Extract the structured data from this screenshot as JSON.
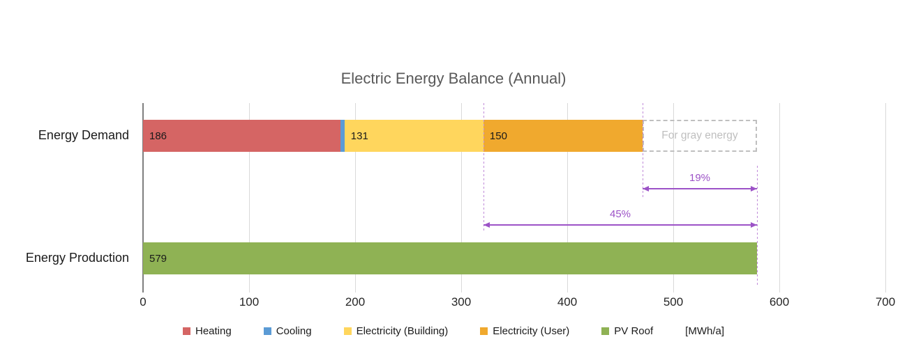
{
  "chart_data": {
    "type": "bar",
    "orientation": "horizontal",
    "title": "Electric Energy Balance (Annual)",
    "x_axis": {
      "min": 0,
      "max": 700,
      "tick_step": 100,
      "ticks": [
        "0",
        "100",
        "200",
        "300",
        "400",
        "500",
        "600",
        "700"
      ],
      "unit": "[MWh/a]",
      "grid": true
    },
    "rows": [
      {
        "category": "Energy Demand",
        "total": 471,
        "segments": [
          {
            "name": "Heating",
            "value": 186,
            "label": "186",
            "color": "#D56564"
          },
          {
            "name": "Cooling",
            "value": 4,
            "label": "",
            "color": "#5B9BD5"
          },
          {
            "name": "Electricity (Building)",
            "value": 131,
            "label": "131",
            "color": "#FFD65D"
          },
          {
            "name": "Electricity (User)",
            "value": 150,
            "label": "150",
            "color": "#F0A92E"
          }
        ],
        "ghost_segment": {
          "label": "For gray energy",
          "from_value": 471,
          "to_value": 579
        }
      },
      {
        "category": "Energy Production",
        "total": 579,
        "segments": [
          {
            "name": "PV Roof",
            "value": 579,
            "label": "579",
            "color": "#8FB254"
          }
        ]
      }
    ],
    "annotations": [
      {
        "type": "double_arrow",
        "label": "19%",
        "from_value": 471,
        "to_value": 579
      },
      {
        "type": "double_arrow",
        "label": "45%",
        "from_value": 321,
        "to_value": 579
      }
    ],
    "guide_lines": [
      {
        "value": 321
      },
      {
        "value": 471
      },
      {
        "value": 579
      }
    ],
    "legend": [
      {
        "label": "Heating",
        "color": "#D56564"
      },
      {
        "label": "Cooling",
        "color": "#5B9BD5"
      },
      {
        "label": "Electricity (Building)",
        "color": "#FFD65D"
      },
      {
        "label": "Electricity (User)",
        "color": "#F0A92E"
      },
      {
        "label": "PV Roof",
        "color": "#8FB254"
      },
      {
        "label": "[MWh/a]",
        "color": null
      }
    ],
    "colors": {
      "annotation_purple": "#9C52C7",
      "guide_purple": "#C08AD9",
      "ghost_gray": "#BFBFBF",
      "gridline": "#D9D9D9",
      "axis_line": "#7F7F7F",
      "title_text": "#595959",
      "label_text": "#1A1A1A"
    }
  }
}
